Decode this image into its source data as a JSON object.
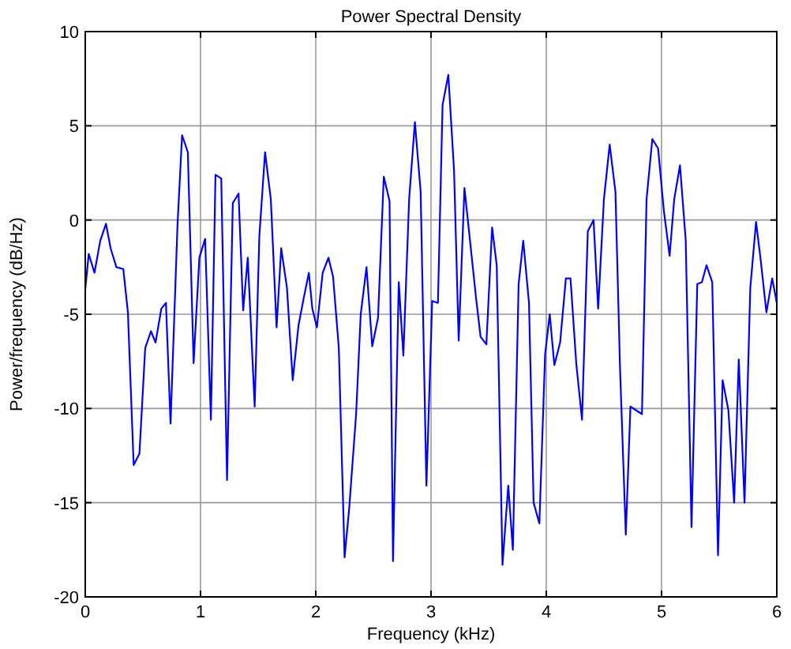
{
  "chart_data": {
    "type": "line",
    "title": "Power Spectral Density",
    "xlabel": "Frequency (kHz)",
    "ylabel": "Power/frequency (dB/Hz)",
    "xlim": [
      0,
      6
    ],
    "ylim": [
      -20,
      10
    ],
    "xticks": [
      0,
      1,
      2,
      3,
      4,
      5,
      6
    ],
    "yticks": [
      -20,
      -15,
      -10,
      -5,
      0,
      5,
      10
    ],
    "grid": true,
    "line_style": "solid",
    "marker": "none",
    "series": [
      {
        "color": "#0000ff",
        "x": [
          0,
          0.03,
          0.08,
          0.13,
          0.18,
          0.22,
          0.27,
          0.33,
          0.37,
          0.42,
          0.47,
          0.52,
          0.57,
          0.61,
          0.66,
          0.7,
          0.74,
          0.8,
          0.84,
          0.89,
          0.94,
          0.99,
          1.04,
          1.09,
          1.13,
          1.18,
          1.23,
          1.28,
          1.33,
          1.37,
          1.41,
          1.47,
          1.51,
          1.56,
          1.61,
          1.66,
          1.7,
          1.75,
          1.8,
          1.85,
          1.9,
          1.94,
          1.97,
          2.01,
          2.06,
          2.11,
          2.15,
          2.2,
          2.25,
          2.29,
          2.35,
          2.39,
          2.44,
          2.49,
          2.54,
          2.59,
          2.64,
          2.67,
          2.72,
          2.76,
          2.81,
          2.86,
          2.91,
          2.96,
          3.01,
          3.06,
          3.1,
          3.15,
          3.2,
          3.24,
          3.29,
          3.34,
          3.39,
          3.43,
          3.48,
          3.53,
          3.57,
          3.62,
          3.67,
          3.71,
          3.76,
          3.8,
          3.85,
          3.89,
          3.94,
          3.99,
          4.03,
          4.07,
          4.12,
          4.17,
          4.21,
          4.26,
          4.31,
          4.36,
          4.41,
          4.45,
          4.5,
          4.55,
          4.6,
          4.64,
          4.69,
          4.73,
          4.78,
          4.83,
          4.87,
          4.92,
          4.97,
          5.02,
          5.07,
          5.11,
          5.16,
          5.21,
          5.26,
          5.31,
          5.35,
          5.39,
          5.44,
          5.49,
          5.53,
          5.58,
          5.63,
          5.67,
          5.72,
          5.77,
          5.82,
          5.86,
          5.91,
          5.96,
          6
        ],
        "values": [
          -3.7,
          -1.8,
          -2.8,
          -1.1,
          -0.2,
          -1.5,
          -2.5,
          -2.6,
          -4.9,
          -13,
          -12.4,
          -6.8,
          -5.9,
          -6.5,
          -4.7,
          -4.4,
          -10.8,
          -0.3,
          4.5,
          3.6,
          -7.6,
          -2,
          -1,
          -10.6,
          2.4,
          2.2,
          -13.8,
          0.9,
          1.4,
          -4.8,
          -2,
          -9.9,
          -0.9,
          3.6,
          1.1,
          -5.7,
          -1.5,
          -3.6,
          -8.5,
          -5.6,
          -4,
          -2.8,
          -4.7,
          -5.7,
          -2.8,
          -2,
          -3,
          -6.8,
          -17.9,
          -15.3,
          -10.3,
          -5,
          -2.5,
          -6.7,
          -5.2,
          2.3,
          1,
          -18.1,
          -3.3,
          -7.2,
          1.1,
          5.2,
          1.5,
          -14.1,
          -4.3,
          -4.4,
          6.1,
          7.7,
          2.6,
          -6.4,
          1.7,
          -1.2,
          -4.1,
          -6.2,
          -6.6,
          -0.4,
          -2.4,
          -18.3,
          -14.1,
          -17.5,
          -3.4,
          -1.1,
          -4.4,
          -15,
          -16.1,
          -7.1,
          -5,
          -7.7,
          -6.5,
          -3.1,
          -3.1,
          -7.6,
          -10.6,
          -0.6,
          0,
          -4.7,
          1.1,
          4,
          1.5,
          -7.9,
          -16.7,
          -9.9,
          -10.1,
          -10.3,
          1.1,
          4.3,
          3.8,
          0.5,
          -1.9,
          1.1,
          2.9,
          -1.1,
          -16.3,
          -3.4,
          -3.3,
          -2.4,
          -3.3,
          -17.8,
          -8.5,
          -10.1,
          -15,
          -7.4,
          -15,
          -3.6,
          -0.1,
          -2.1,
          -4.9,
          -3.1,
          -4.4
        ]
      }
    ]
  }
}
